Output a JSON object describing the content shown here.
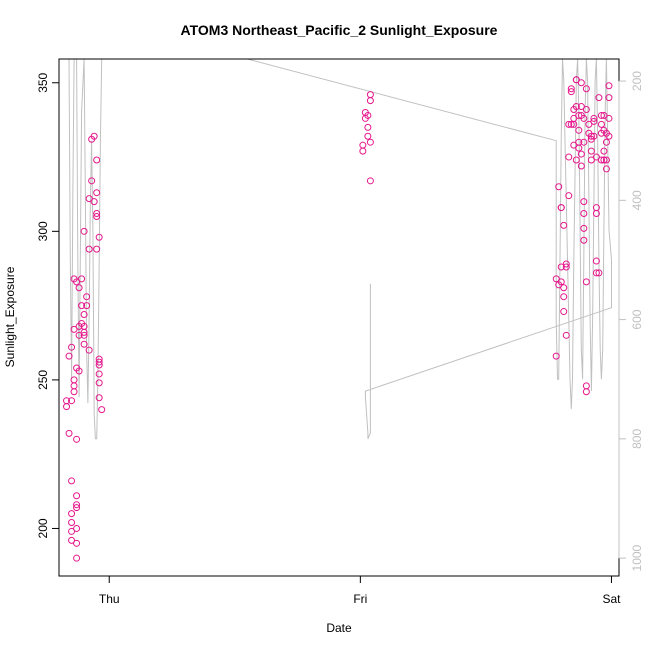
{
  "chart_data": {
    "type": "scatter",
    "title": "ATOM3 Northeast_Pacific_2 Sunlight_Exposure",
    "xlabel": "Date",
    "ylabel": "Sunlight_Exposure",
    "x_ticks": [
      "Thu",
      "Fri",
      "Sat"
    ],
    "x_range_days": [
      -0.2,
      2.03
    ],
    "ylim": [
      184,
      358
    ],
    "y_ticks": [
      200,
      250,
      300,
      350
    ],
    "y2_ticks": [
      200,
      400,
      600,
      800,
      1000
    ],
    "y2lim": [
      1030,
      163
    ],
    "grid": false,
    "legend": "none",
    "colors": {
      "points": "#e6178c",
      "secondary_line": "#c0c0c0",
      "axis": "#000000",
      "axis2": "#c0c0c0"
    },
    "series": [
      {
        "type": "points",
        "points": [
          [
            -0.17,
            243
          ],
          [
            -0.17,
            241
          ],
          [
            -0.16,
            258
          ],
          [
            -0.16,
            232
          ],
          [
            -0.15,
            261
          ],
          [
            -0.15,
            216
          ],
          [
            -0.15,
            243
          ],
          [
            -0.15,
            205
          ],
          [
            -0.15,
            202
          ],
          [
            -0.15,
            199
          ],
          [
            -0.15,
            196
          ],
          [
            -0.14,
            248
          ],
          [
            -0.14,
            250
          ],
          [
            -0.14,
            246
          ],
          [
            -0.14,
            267
          ],
          [
            -0.14,
            284
          ],
          [
            -0.13,
            230
          ],
          [
            -0.13,
            211
          ],
          [
            -0.13,
            207
          ],
          [
            -0.13,
            208
          ],
          [
            -0.13,
            200
          ],
          [
            -0.13,
            195
          ],
          [
            -0.13,
            190
          ],
          [
            -0.13,
            254
          ],
          [
            -0.13,
            283
          ],
          [
            -0.12,
            253
          ],
          [
            -0.12,
            281
          ],
          [
            -0.12,
            268
          ],
          [
            -0.12,
            265
          ],
          [
            -0.11,
            269
          ],
          [
            -0.11,
            284
          ],
          [
            -0.11,
            275
          ],
          [
            -0.1,
            268
          ],
          [
            -0.1,
            265
          ],
          [
            -0.1,
            300
          ],
          [
            -0.1,
            266
          ],
          [
            -0.1,
            262
          ],
          [
            -0.1,
            272
          ],
          [
            -0.09,
            278
          ],
          [
            -0.09,
            275
          ],
          [
            -0.08,
            294
          ],
          [
            -0.08,
            311
          ],
          [
            -0.08,
            260
          ],
          [
            -0.07,
            317
          ],
          [
            -0.07,
            331
          ],
          [
            -0.06,
            332
          ],
          [
            -0.06,
            310
          ],
          [
            -0.05,
            313
          ],
          [
            -0.05,
            305
          ],
          [
            -0.05,
            306
          ],
          [
            -0.05,
            324
          ],
          [
            -0.05,
            294
          ],
          [
            -0.04,
            298
          ],
          [
            -0.04,
            255
          ],
          [
            -0.04,
            256
          ],
          [
            -0.04,
            257
          ],
          [
            -0.04,
            252
          ],
          [
            -0.04,
            249
          ],
          [
            -0.04,
            244
          ],
          [
            -0.03,
            240
          ],
          [
            1.01,
            327
          ],
          [
            1.01,
            329
          ],
          [
            1.02,
            338
          ],
          [
            1.02,
            340
          ],
          [
            1.03,
            339
          ],
          [
            1.03,
            335
          ],
          [
            1.03,
            332
          ],
          [
            1.04,
            330
          ],
          [
            1.04,
            317
          ],
          [
            1.04,
            344
          ],
          [
            1.04,
            346
          ],
          [
            1.78,
            284
          ],
          [
            1.78,
            258
          ],
          [
            1.79,
            315
          ],
          [
            1.79,
            282
          ],
          [
            1.8,
            308
          ],
          [
            1.8,
            288
          ],
          [
            1.8,
            308
          ],
          [
            1.8,
            283
          ],
          [
            1.81,
            281
          ],
          [
            1.81,
            278
          ],
          [
            1.81,
            273
          ],
          [
            1.81,
            302
          ],
          [
            1.82,
            289
          ],
          [
            1.82,
            288
          ],
          [
            1.82,
            265
          ],
          [
            1.83,
            325
          ],
          [
            1.83,
            336
          ],
          [
            1.83,
            312
          ],
          [
            1.84,
            336
          ],
          [
            1.84,
            348
          ],
          [
            1.84,
            347
          ],
          [
            1.85,
            341
          ],
          [
            1.85,
            329
          ],
          [
            1.85,
            338
          ],
          [
            1.85,
            336
          ],
          [
            1.86,
            342
          ],
          [
            1.86,
            351
          ],
          [
            1.86,
            351
          ],
          [
            1.86,
            324
          ],
          [
            1.87,
            339
          ],
          [
            1.87,
            334
          ],
          [
            1.87,
            328
          ],
          [
            1.87,
            330
          ],
          [
            1.88,
            350
          ],
          [
            1.88,
            342
          ],
          [
            1.88,
            339
          ],
          [
            1.88,
            326
          ],
          [
            1.88,
            322
          ],
          [
            1.89,
            338
          ],
          [
            1.89,
            330
          ],
          [
            1.89,
            310
          ],
          [
            1.89,
            306
          ],
          [
            1.89,
            301
          ],
          [
            1.89,
            297
          ],
          [
            1.9,
            283
          ],
          [
            1.9,
            248
          ],
          [
            1.9,
            246
          ],
          [
            1.9,
            348
          ],
          [
            1.9,
            341
          ],
          [
            1.91,
            336
          ],
          [
            1.91,
            333
          ],
          [
            1.92,
            332
          ],
          [
            1.92,
            327
          ],
          [
            1.92,
            331
          ],
          [
            1.92,
            324
          ],
          [
            1.93,
            338
          ],
          [
            1.93,
            337
          ],
          [
            1.93,
            332
          ],
          [
            1.94,
            325
          ],
          [
            1.94,
            308
          ],
          [
            1.94,
            306
          ],
          [
            1.94,
            290
          ],
          [
            1.94,
            286
          ],
          [
            1.95,
            286
          ],
          [
            1.95,
            345
          ],
          [
            1.96,
            339
          ],
          [
            1.96,
            336
          ],
          [
            1.96,
            333
          ],
          [
            1.96,
            324
          ],
          [
            1.97,
            327
          ],
          [
            1.97,
            324
          ],
          [
            1.97,
            339
          ],
          [
            1.97,
            334
          ],
          [
            1.98,
            321
          ],
          [
            1.98,
            324
          ],
          [
            1.98,
            330
          ],
          [
            1.98,
            333
          ],
          [
            1.99,
            349
          ],
          [
            1.99,
            345
          ],
          [
            1.99,
            338
          ],
          [
            1.99,
            332
          ]
        ]
      }
    ]
  }
}
